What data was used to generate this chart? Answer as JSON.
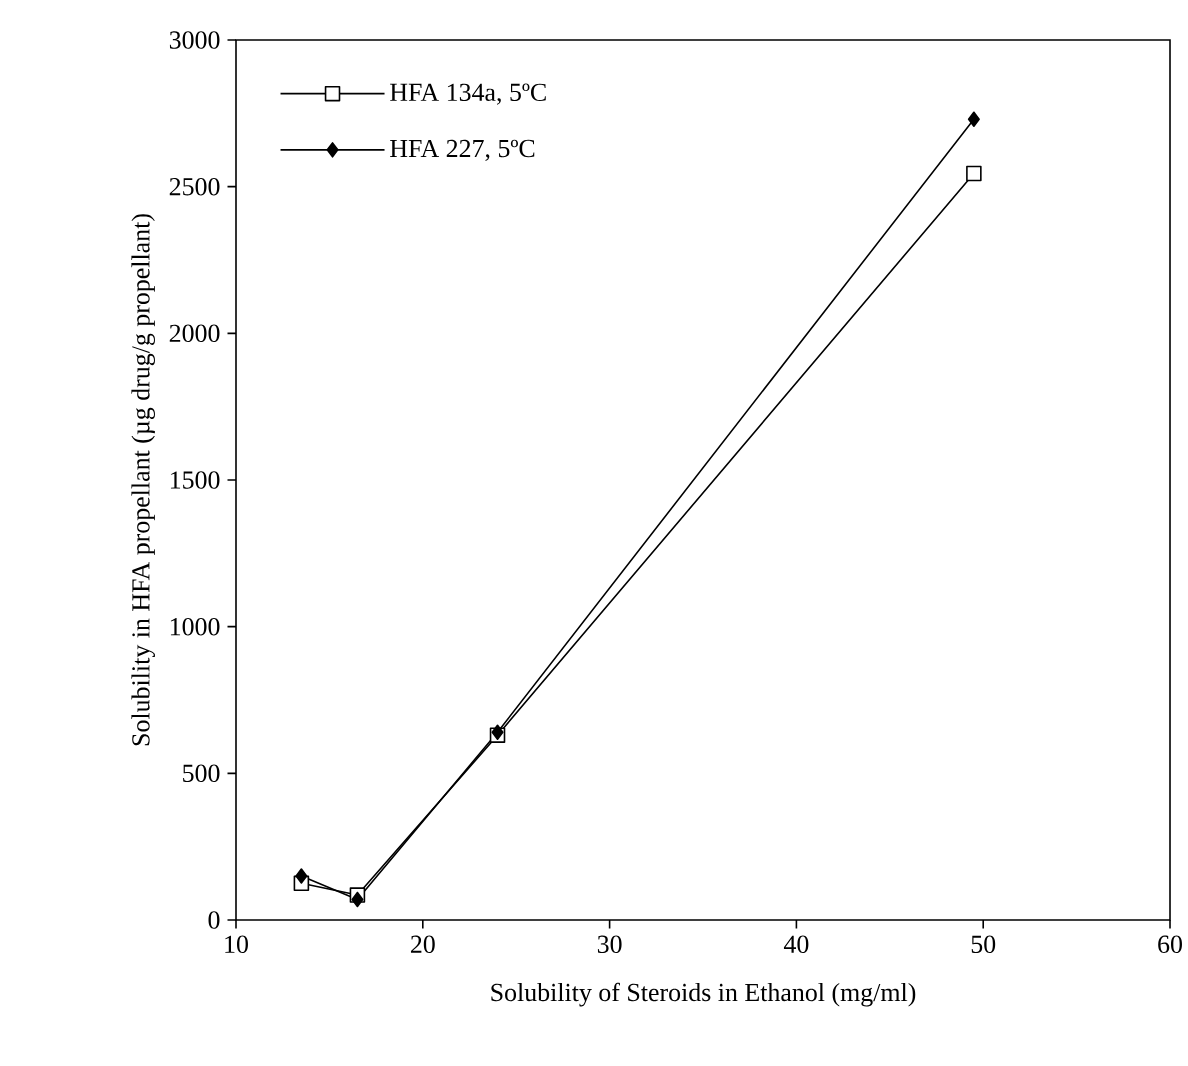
{
  "chart_data": {
    "type": "line",
    "xlabel": "Solubility of Steroids in Ethanol (mg/ml)",
    "ylabel": "Solubility in HFA propellant (µg drug/g propellant)",
    "xlim": [
      10,
      60
    ],
    "xticks": [
      10,
      20,
      30,
      40,
      50,
      60
    ],
    "ylim": [
      0,
      3000
    ],
    "yticks": [
      0,
      500,
      1000,
      1500,
      2000,
      2500,
      3000
    ],
    "legend": "top left",
    "grid": false,
    "line_style": "solid",
    "series": [
      {
        "name": "HFA 134a, 5ºC",
        "color": "#000000",
        "marker": "square",
        "x": [
          13.5,
          16.5,
          24,
          49.5
        ],
        "values": [
          125,
          85,
          630,
          2545
        ]
      },
      {
        "name": "HFA 227, 5ºC",
        "color": "#000000",
        "marker": "diamond",
        "x": [
          13.5,
          16.5,
          24,
          49.5
        ],
        "values": [
          150,
          70,
          640,
          2730
        ]
      }
    ]
  }
}
